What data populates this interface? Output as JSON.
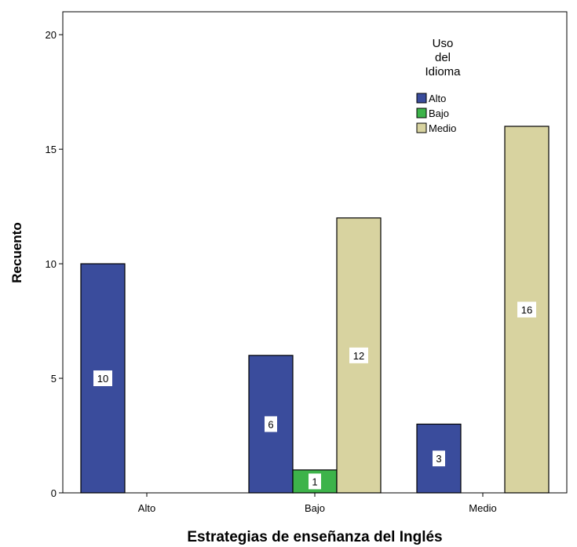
{
  "chart_data": {
    "type": "bar",
    "xlabel": "Estrategias de enseñanza del Inglés",
    "ylabel": "Recuento",
    "ylim": [
      0,
      21
    ],
    "yticks": [
      0,
      5,
      10,
      15,
      20
    ],
    "grid": false,
    "categories": [
      "Alto",
      "Bajo",
      "Medio"
    ],
    "legend": {
      "placement": "top-right",
      "title_lines": [
        "Uso",
        "del",
        "Idioma"
      ]
    },
    "series": [
      {
        "name": "Alto",
        "color": "#3a4c9c",
        "values": [
          10,
          6,
          3
        ]
      },
      {
        "name": "Bajo",
        "color": "#3db34a",
        "values": [
          0,
          1,
          0
        ]
      },
      {
        "name": "Medio",
        "color": "#d8d3a0",
        "values": [
          0,
          12,
          16
        ]
      }
    ]
  }
}
